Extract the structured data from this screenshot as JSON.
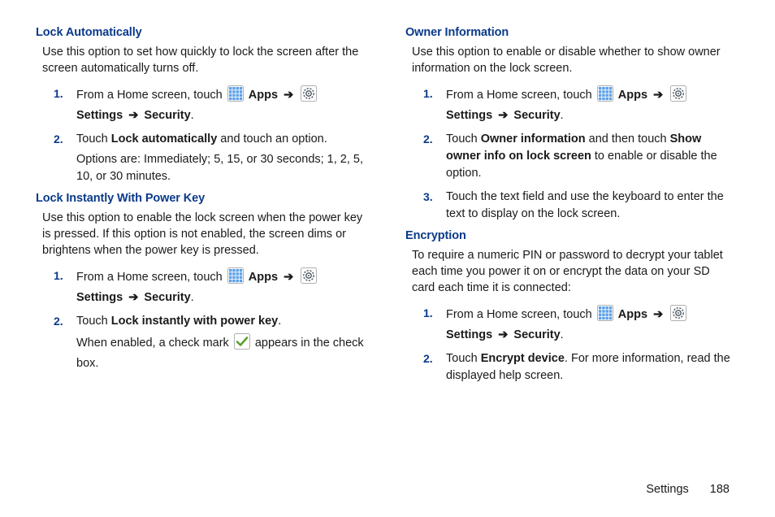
{
  "icons": {
    "apps_fill": "#5aa0e8",
    "settings_stroke": "#4b5560",
    "check_color": "#5aa030",
    "border": "#b0b0b0"
  },
  "arrow": "➔",
  "nav": {
    "prefix": "From a Home screen, touch ",
    "apps": "Apps",
    "settings": "Settings",
    "security": "Security"
  },
  "left": {
    "s1": {
      "heading": "Lock Automatically",
      "intro": "Use this option to set how quickly to lock the screen after the screen automatically turns off.",
      "step2a": "Touch ",
      "step2b": "Lock automatically",
      "step2c": " and touch an option.",
      "step2sub": "Options are: Immediately; 5, 15, or 30 seconds; 1, 2, 5, 10, or 30 minutes."
    },
    "s2": {
      "heading": "Lock Instantly With Power Key",
      "intro": "Use this option to enable the lock screen when the power key is pressed. If this option is not enabled, the screen dims or brightens when the power key is pressed.",
      "step2a": "Touch ",
      "step2b": "Lock instantly with power key",
      "step2c": ".",
      "step2suba": "When enabled, a check mark ",
      "step2subb": " appears in the check box."
    }
  },
  "right": {
    "s1": {
      "heading": "Owner Information",
      "intro": "Use this option to enable or disable whether to show owner information on the lock screen.",
      "step2a": "Touch ",
      "step2b": "Owner information",
      "step2c": " and then touch ",
      "step2d": "Show owner info on lock screen",
      "step2e": " to enable or disable the option.",
      "step3": "Touch the text field and use the keyboard to enter the text to display on the lock screen."
    },
    "s2": {
      "heading": "Encryption",
      "intro": "To require a numeric PIN or password to decrypt your tablet each time you power it on or encrypt the data on your SD card each time it is connected:",
      "step2a": "Touch ",
      "step2b": "Encrypt device",
      "step2c": ". For more information, read the displayed help screen."
    }
  },
  "footer": {
    "label": "Settings",
    "page": "188"
  }
}
